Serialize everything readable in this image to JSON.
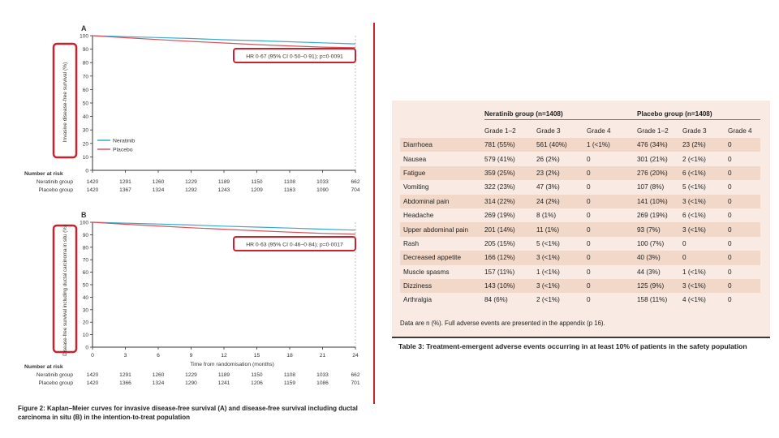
{
  "figure": {
    "panel_a_label": "A",
    "panel_b_label": "B",
    "y_ticks": [
      "0",
      "10",
      "20",
      "30",
      "40",
      "50",
      "60",
      "70",
      "80",
      "90",
      "100"
    ],
    "x_ticks": [
      "0",
      "3",
      "6",
      "9",
      "12",
      "15",
      "18",
      "21",
      "24"
    ],
    "x_axis_title": "Time from randomisation (months)",
    "panel_a": {
      "y_axis_title": "Invasive disease-free survival (%)",
      "hr_annotation": "HR 0·67 (95% CI 0·50–0·91); p=0·0091",
      "legend": [
        "Neratinib",
        "Placebo"
      ]
    },
    "panel_b": {
      "y_axis_title": "Disease-free survival including ductal carcinoma in situ (%)",
      "hr_annotation": "HR 0·63 (95% CI 0·46–0·84); p=0·0017"
    },
    "risk_table_a": {
      "heading": "Number at risk",
      "rows": [
        {
          "label": "Neratinib group",
          "values": [
            "1420",
            "1291",
            "1260",
            "1229",
            "1189",
            "1150",
            "1108",
            "1033",
            "662"
          ]
        },
        {
          "label": "Placebo group",
          "values": [
            "1420",
            "1367",
            "1324",
            "1292",
            "1243",
            "1209",
            "1163",
            "1090",
            "704"
          ]
        }
      ]
    },
    "risk_table_b": {
      "heading": "Number at risk",
      "rows": [
        {
          "label": "Neratinib group",
          "values": [
            "1420",
            "1291",
            "1260",
            "1229",
            "1189",
            "1150",
            "1108",
            "1033",
            "662"
          ]
        },
        {
          "label": "Placebo group",
          "values": [
            "1420",
            "1366",
            "1324",
            "1290",
            "1241",
            "1206",
            "1159",
            "1086",
            "701"
          ]
        }
      ]
    },
    "caption": "Figure 2: Kaplan–Meier curves for invasive disease-free survival (A) and disease-free survival including ductal carcinoma in situ (B) in the intention-to-treat population",
    "colors": {
      "neratinib": "#3aa9c9",
      "placebo": "#d9525a",
      "highlight": "#c8242f"
    }
  },
  "chart_data": [
    {
      "type": "line",
      "title": "",
      "xlabel": "Time from randomisation (months)",
      "ylabel": "Invasive disease-free survival (%)",
      "xlim": [
        0,
        24
      ],
      "ylim": [
        0,
        100
      ],
      "x": [
        0,
        3,
        6,
        9,
        12,
        15,
        18,
        21,
        24
      ],
      "series": [
        {
          "name": "Neratinib",
          "values": [
            100,
            99.3,
            98.6,
            97.9,
            97.0,
            96.3,
            95.5,
            94.7,
            93.9
          ]
        },
        {
          "name": "Placebo",
          "values": [
            100,
            98.5,
            97.1,
            95.8,
            94.6,
            93.4,
            92.4,
            91.5,
            91.0
          ]
        }
      ]
    },
    {
      "type": "line",
      "title": "",
      "xlabel": "Time from randomisation (months)",
      "ylabel": "Disease-free survival including ductal carcinoma in situ (%)",
      "xlim": [
        0,
        24
      ],
      "ylim": [
        0,
        100
      ],
      "x": [
        0,
        3,
        6,
        9,
        12,
        15,
        18,
        21,
        24
      ],
      "series": [
        {
          "name": "Neratinib",
          "values": [
            100,
            99.3,
            98.6,
            97.8,
            96.9,
            96.1,
            95.3,
            94.5,
            93.7
          ]
        },
        {
          "name": "Placebo",
          "values": [
            100,
            98.4,
            97.0,
            95.6,
            94.4,
            93.2,
            92.1,
            91.1,
            90.5
          ]
        }
      ]
    }
  ],
  "table": {
    "group_neratinib": "Neratinib group (n=1408)",
    "group_placebo": "Placebo group (n=1408)",
    "grade_headers": [
      "Grade 1–2",
      "Grade 3",
      "Grade 4",
      "Grade 1–2",
      "Grade 3",
      "Grade 4"
    ],
    "rows": [
      {
        "event": "Diarrhoea",
        "values": [
          "781 (55%)",
          "561 (40%)",
          "1 (<1%)",
          "476 (34%)",
          "23 (2%)",
          "0"
        ]
      },
      {
        "event": "Nausea",
        "values": [
          "579 (41%)",
          "26 (2%)",
          "0",
          "301 (21%)",
          "2 (<1%)",
          "0"
        ]
      },
      {
        "event": "Fatigue",
        "values": [
          "359 (25%)",
          "23 (2%)",
          "0",
          "276 (20%)",
          "6 (<1%)",
          "0"
        ]
      },
      {
        "event": "Vomiting",
        "values": [
          "322 (23%)",
          "47 (3%)",
          "0",
          "107 (8%)",
          "5 (<1%)",
          "0"
        ]
      },
      {
        "event": "Abdominal pain",
        "values": [
          "314 (22%)",
          "24 (2%)",
          "0",
          "141 (10%)",
          "3 (<1%)",
          "0"
        ]
      },
      {
        "event": "Headache",
        "values": [
          "269 (19%)",
          "8 (1%)",
          "0",
          "269 (19%)",
          "6 (<1%)",
          "0"
        ]
      },
      {
        "event": "Upper abdominal pain",
        "values": [
          "201 (14%)",
          "11 (1%)",
          "0",
          "93 (7%)",
          "3 (<1%)",
          "0"
        ]
      },
      {
        "event": "Rash",
        "values": [
          "205 (15%)",
          "5 (<1%)",
          "0",
          "100 (7%)",
          "0",
          "0"
        ]
      },
      {
        "event": "Decreased appetite",
        "values": [
          "166 (12%)",
          "3 (<1%)",
          "0",
          "40 (3%)",
          "0",
          "0"
        ]
      },
      {
        "event": "Muscle spasms",
        "values": [
          "157 (11%)",
          "1 (<1%)",
          "0",
          "44 (3%)",
          "1 (<1%)",
          "0"
        ]
      },
      {
        "event": "Dizziness",
        "values": [
          "143 (10%)",
          "3 (<1%)",
          "0",
          "125 (9%)",
          "3 (<1%)",
          "0"
        ]
      },
      {
        "event": "Arthralgia",
        "values": [
          "84 (6%)",
          "2 (<1%)",
          "0",
          "158 (11%)",
          "4 (<1%)",
          "0"
        ]
      }
    ],
    "footnote": "Data are n (%). Full adverse events are presented in the appendix (p 16).",
    "title": "Table 3: Treatment-emergent adverse events occurring in at least 10% of patients in the safety population"
  }
}
